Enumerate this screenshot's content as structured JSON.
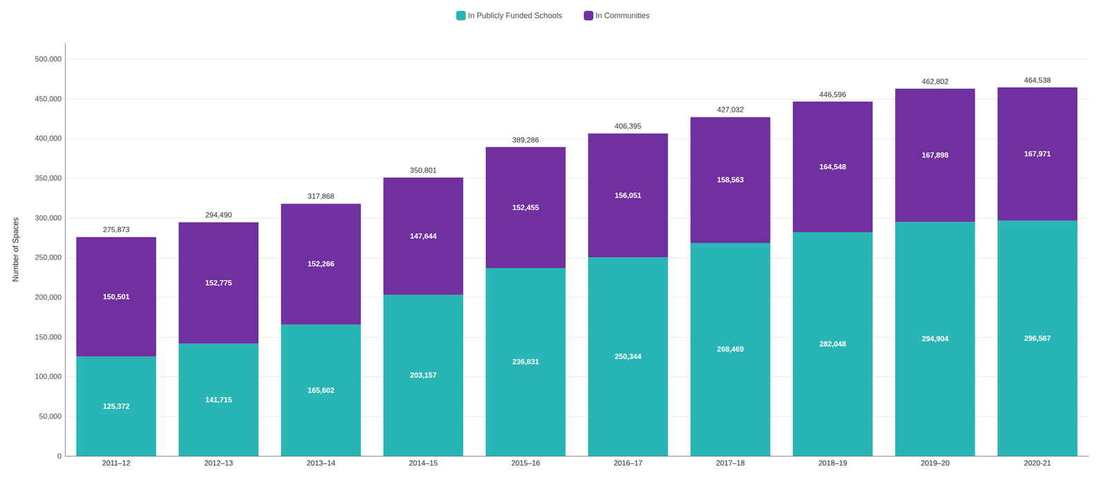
{
  "chart_data": {
    "type": "bar",
    "stacked": true,
    "categories": [
      "2011–12",
      "2012–13",
      "2013–14",
      "2014–15",
      "2015–16",
      "2016–17",
      "2017–18",
      "2018–19",
      "2019–20",
      "2020-21"
    ],
    "series": [
      {
        "name": "In Publicly Funded Schools",
        "color": "#2ab5b5",
        "values": [
          125372,
          141715,
          165602,
          203157,
          236831,
          250344,
          268469,
          282048,
          294904,
          296567
        ],
        "value_labels": [
          "125,372",
          "141,715",
          "165,602",
          "203,157",
          "236,831",
          "250,344",
          "268,469",
          "282,048",
          "294,904",
          "296,567"
        ]
      },
      {
        "name": "In Communities",
        "color": "#7030a0",
        "values": [
          150501,
          152775,
          152266,
          147644,
          152455,
          156051,
          158563,
          164548,
          167898,
          167971
        ],
        "value_labels": [
          "150,501",
          "152,775",
          "152,266",
          "147,644",
          "152,455",
          "156,051",
          "158,563",
          "164,548",
          "167,898",
          "167,971"
        ]
      }
    ],
    "totals": [
      275873,
      294490,
      317868,
      350801,
      389286,
      406395,
      427032,
      446596,
      462802,
      464538
    ],
    "totals_labels": [
      "275,873",
      "294,490",
      "317,868",
      "350,801",
      "389,286",
      "406,395",
      "427,032",
      "446,596",
      "462,802",
      "464,538"
    ],
    "ylabel": "Number of Spaces",
    "ylim": [
      0,
      520000
    ],
    "yticks": [
      0,
      {
        "value": 50000,
        "label": "50,000"
      },
      {
        "value": 100000,
        "label": "100,000"
      },
      {
        "value": 150000,
        "label": "150,000"
      },
      {
        "value": 200000,
        "label": "200,000"
      },
      {
        "value": 250000,
        "label": "250,000"
      },
      {
        "value": 300000,
        "label": "300,000"
      },
      {
        "value": 350000,
        "label": "350,000"
      },
      {
        "value": 400000,
        "label": "400,000"
      },
      {
        "value": 450000,
        "label": "450,000"
      },
      {
        "value": 500000,
        "label": "500,000"
      }
    ],
    "data_labels": true,
    "grid": true,
    "legend": "top"
  }
}
